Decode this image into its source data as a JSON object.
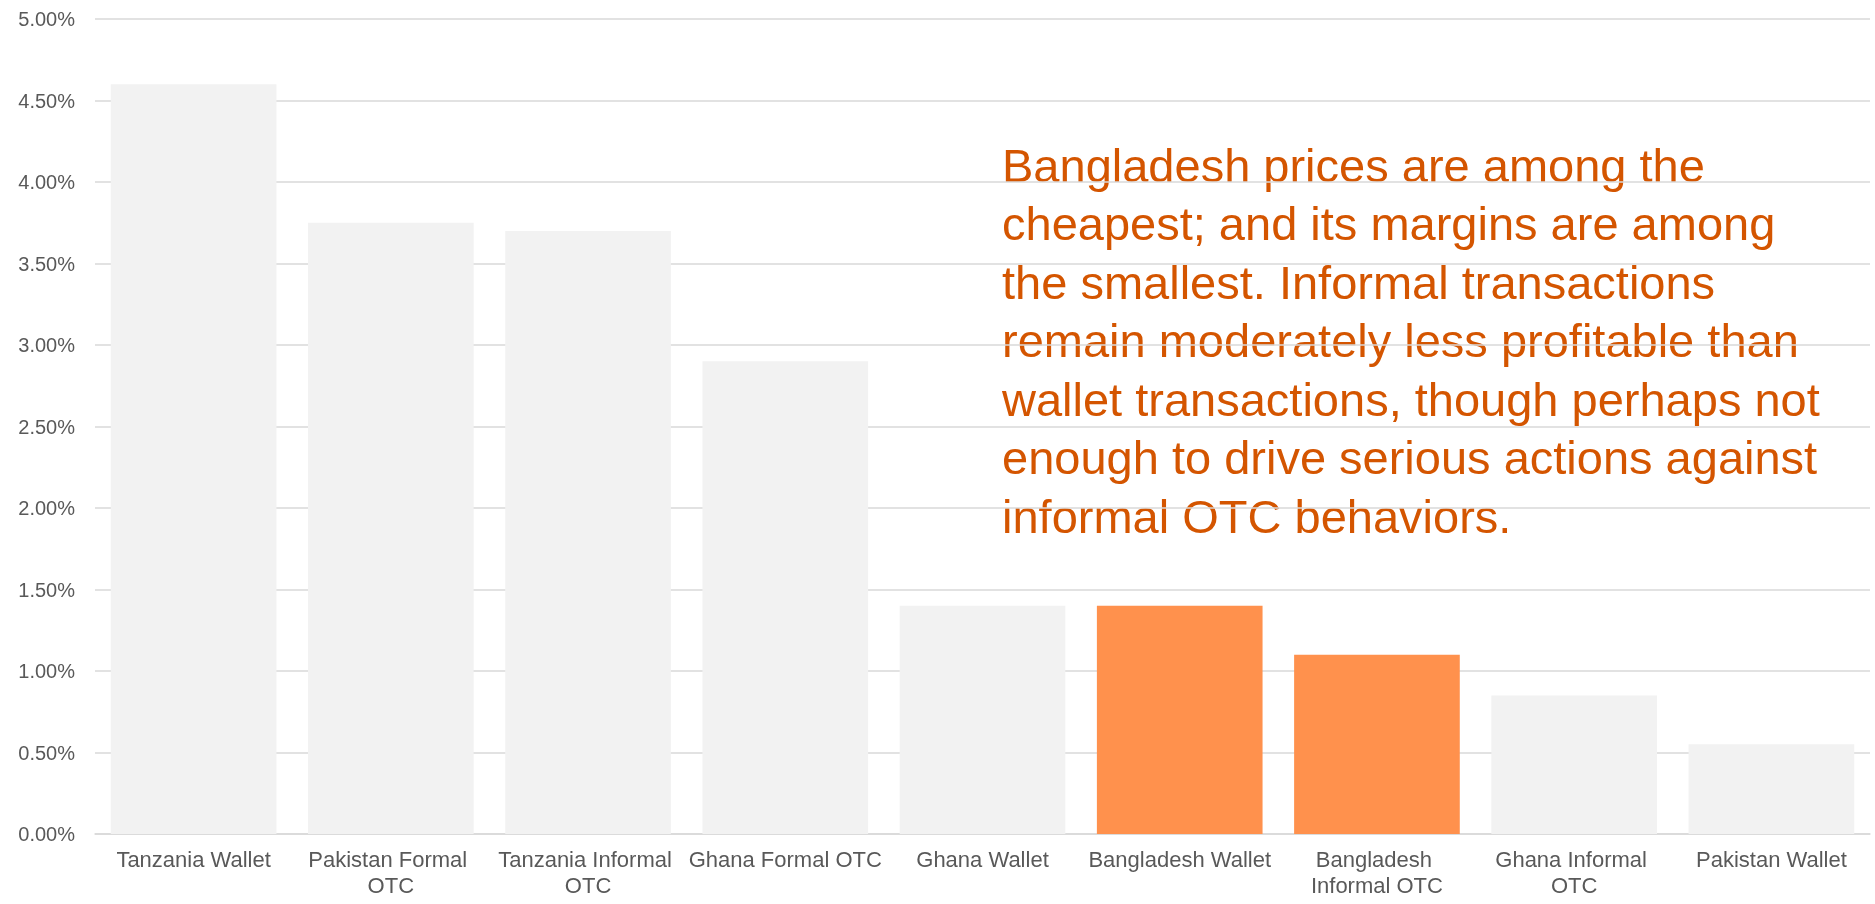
{
  "chart_data": {
    "type": "bar",
    "categories": [
      "Tanzania Wallet",
      "Pakistan Formal OTC",
      "Tanzania Informal OTC",
      "Ghana Formal OTC",
      "Ghana Wallet",
      "Bangladesh Wallet",
      "Bangladesh Informal OTC",
      "Ghana Informal OTC",
      "Pakistan Wallet"
    ],
    "values": [
      4.6,
      3.75,
      3.7,
      2.9,
      1.4,
      1.4,
      1.1,
      0.85,
      0.55
    ],
    "colors": [
      "#f2f2f2",
      "#f2f2f2",
      "#f2f2f2",
      "#f2f2f2",
      "#f2f2f2",
      "#ff914d",
      "#ff914d",
      "#f2f2f2",
      "#f2f2f2"
    ],
    "ylim": [
      0,
      5
    ],
    "yticks": [
      {
        "value": 0,
        "label": "0.00%"
      },
      {
        "value": 0.5,
        "label": "0.50%"
      },
      {
        "value": 1,
        "label": "1.00%"
      },
      {
        "value": 1.5,
        "label": "1.50%"
      },
      {
        "value": 2,
        "label": "2.00%"
      },
      {
        "value": 2.5,
        "label": "2.50%"
      },
      {
        "value": 3,
        "label": "3.00%"
      },
      {
        "value": 3.5,
        "label": "3.50%"
      },
      {
        "value": 4,
        "label": "4.00%"
      },
      {
        "value": 4.5,
        "label": "4.50%"
      },
      {
        "value": 5,
        "label": "5.00%"
      }
    ],
    "grid": "y",
    "annotations": [
      "Bangladesh prices are among the cheapest; and its margins are among the smallest. Informal transactions remain moderately less profitable than wallet transactions, though perhaps not enough to drive serious actions against informal OTC behaviors."
    ]
  }
}
